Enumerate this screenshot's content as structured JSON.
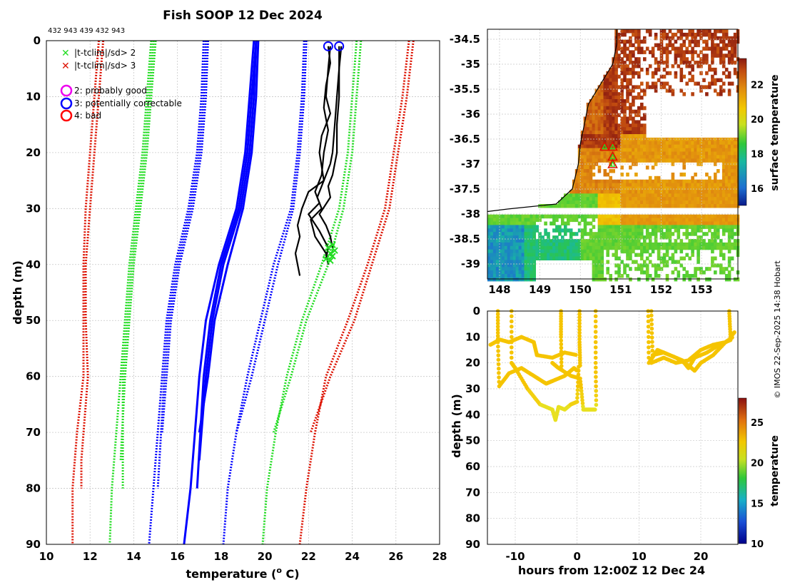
{
  "figure": {
    "title": "Fish SOOP 12 Dec 2024",
    "top_ids": "432 943 439 432 943",
    "credit": "© IMOS 22-Sep-2025 14:38 Hobart"
  },
  "colors": {
    "blue": "#0000ff",
    "green": "#22dd22",
    "red": "#dd1100",
    "black": "#000000",
    "grid": "#c8c8c8",
    "magenta": "#ee00ee"
  },
  "chart_data": [
    {
      "type": "line",
      "name": "profile",
      "xlabel": "temperature (",
      "xlabel_sup": "o",
      "xlabel_suffix": " C)",
      "ylabel": "depth (m)",
      "xlim": [
        10,
        28
      ],
      "ylim": [
        90,
        0
      ],
      "xticks": [
        "10",
        "12",
        "14",
        "16",
        "18",
        "20",
        "22",
        "24",
        "26",
        "28"
      ],
      "yticks": [
        "0",
        "10",
        "20",
        "30",
        "40",
        "50",
        "60",
        "70",
        "80",
        "90"
      ],
      "legend": [
        {
          "symbol": "x",
          "color": "#22dd22",
          "label": "|t-tclim|/sd> 2"
        },
        {
          "symbol": "x",
          "color": "#dd1100",
          "label": "|t-tclim|/sd> 3"
        },
        {
          "symbol": "o",
          "color": "#ee00ee",
          "label": "2: probably good"
        },
        {
          "symbol": "o",
          "color": "#0000ff",
          "label": "3: potentially correctable"
        },
        {
          "symbol": "o",
          "color": "#ff0000",
          "label": "4: bad"
        }
      ],
      "climatology": [
        {
          "name": "mean-1",
          "depth": [
            0,
            10,
            20,
            30,
            40,
            50,
            60,
            70
          ],
          "temp": [
            19.7,
            19.6,
            19.4,
            19.0,
            18.3,
            17.7,
            17.4,
            17.0
          ]
        },
        {
          "name": "mean-2",
          "depth": [
            0,
            10,
            20,
            30,
            40,
            50,
            60,
            75
          ],
          "temp": [
            19.6,
            19.5,
            19.3,
            18.9,
            18.1,
            17.6,
            17.3,
            17.0
          ]
        },
        {
          "name": "mean-3",
          "depth": [
            0,
            10,
            20,
            30,
            40,
            50,
            60,
            80
          ],
          "temp": [
            19.6,
            19.4,
            19.2,
            18.8,
            18.0,
            17.5,
            17.2,
            16.9
          ]
        },
        {
          "name": "mean-4",
          "depth": [
            0,
            10,
            20,
            30,
            40,
            50,
            60,
            70,
            80,
            90
          ],
          "temp": [
            19.5,
            19.3,
            19.1,
            18.7,
            17.9,
            17.3,
            17.0,
            16.8,
            16.6,
            16.3
          ]
        },
        {
          "name": "sd1-lower-1",
          "depth": [
            0,
            10,
            20,
            30,
            40,
            50,
            60,
            70
          ],
          "temp": [
            17.4,
            17.3,
            17.1,
            16.7,
            16.1,
            15.7,
            15.5,
            15.3
          ]
        },
        {
          "name": "sd1-lower-2",
          "depth": [
            0,
            10,
            20,
            30,
            40,
            50,
            60,
            80
          ],
          "temp": [
            17.3,
            17.2,
            17.0,
            16.6,
            16.0,
            15.6,
            15.4,
            15.1
          ]
        },
        {
          "name": "sd1-lower-3",
          "depth": [
            0,
            10,
            20,
            30,
            40,
            50,
            60,
            70,
            80,
            90
          ],
          "temp": [
            17.2,
            17.1,
            16.9,
            16.5,
            15.9,
            15.5,
            15.3,
            15.1,
            14.9,
            14.7
          ]
        },
        {
          "name": "sd1-upper-1",
          "depth": [
            0,
            10,
            20,
            30,
            40,
            50,
            60,
            70
          ],
          "temp": [
            21.9,
            21.8,
            21.6,
            21.3,
            20.6,
            20.0,
            19.4,
            18.7
          ]
        },
        {
          "name": "sd1-upper-2",
          "depth": [
            0,
            10,
            20,
            30,
            40,
            50,
            60,
            70,
            80,
            90
          ],
          "temp": [
            21.8,
            21.7,
            21.5,
            21.2,
            20.4,
            19.8,
            19.2,
            18.7,
            18.3,
            18.1
          ]
        },
        {
          "name": "sd2-lower-1",
          "depth": [
            0,
            10,
            20,
            30,
            40,
            50,
            60,
            75
          ],
          "temp": [
            15.0,
            14.8,
            14.6,
            14.3,
            14.0,
            13.8,
            13.6,
            13.4
          ]
        },
        {
          "name": "sd2-lower-2",
          "depth": [
            0,
            10,
            20,
            30,
            40,
            50,
            60,
            80
          ],
          "temp": [
            14.9,
            14.7,
            14.5,
            14.2,
            13.9,
            13.7,
            13.5,
            13.5
          ]
        },
        {
          "name": "sd2-lower-3",
          "depth": [
            0,
            10,
            20,
            30,
            40,
            50,
            60,
            70,
            80,
            90
          ],
          "temp": [
            14.8,
            14.6,
            14.4,
            14.1,
            13.8,
            13.6,
            13.4,
            13.2,
            13.0,
            12.9
          ]
        },
        {
          "name": "sd2-upper-1",
          "depth": [
            0,
            10,
            20,
            30,
            40,
            50,
            60,
            70
          ],
          "temp": [
            24.4,
            24.2,
            24.0,
            23.6,
            22.9,
            21.9,
            21.2,
            20.4
          ]
        },
        {
          "name": "sd2-upper-2",
          "depth": [
            0,
            10,
            20,
            30,
            40,
            50,
            60,
            70,
            80,
            90
          ],
          "temp": [
            24.2,
            24.0,
            23.8,
            23.4,
            22.6,
            21.7,
            21.0,
            20.5,
            20.1,
            19.9
          ]
        },
        {
          "name": "sd3-lower-1",
          "depth": [
            0,
            10,
            20,
            30,
            40,
            50,
            60,
            75,
            80
          ],
          "temp": [
            12.6,
            12.4,
            12.2,
            12.0,
            11.8,
            11.8,
            11.9,
            11.6,
            11.6
          ]
        },
        {
          "name": "sd3-lower-2",
          "depth": [
            0,
            10,
            20,
            30,
            40,
            50,
            60,
            70,
            80,
            90
          ],
          "temp": [
            12.4,
            12.2,
            12.0,
            11.8,
            11.7,
            11.7,
            11.7,
            11.4,
            11.2,
            11.2
          ]
        },
        {
          "name": "sd3-upper-1",
          "depth": [
            0,
            10,
            20,
            30,
            40,
            50,
            60,
            70
          ],
          "temp": [
            26.8,
            26.5,
            26.1,
            25.7,
            24.9,
            24.1,
            23.0,
            22.1
          ]
        },
        {
          "name": "sd3-upper-2",
          "depth": [
            0,
            10,
            20,
            30,
            40,
            50,
            60,
            70,
            80,
            90
          ],
          "temp": [
            26.6,
            26.3,
            25.9,
            25.5,
            24.7,
            23.8,
            22.8,
            22.3,
            21.9,
            21.6
          ]
        }
      ],
      "observed": [
        {
          "name": "obs-1",
          "depth": [
            1,
            5,
            10,
            15,
            20,
            22,
            25,
            28,
            30,
            32,
            35,
            38,
            40
          ],
          "temp": [
            23.5,
            23.4,
            23.3,
            23.2,
            23.1,
            23.0,
            22.7,
            22.4,
            22.6,
            22.1,
            22.3,
            22.8,
            22.9
          ]
        },
        {
          "name": "obs-2",
          "depth": [
            1,
            5,
            10,
            13,
            17,
            20,
            25,
            27,
            30,
            33,
            35,
            38,
            40,
            42
          ],
          "temp": [
            23.0,
            22.9,
            22.8,
            23.0,
            22.6,
            22.5,
            22.7,
            22.0,
            21.7,
            21.5,
            21.6,
            21.4,
            21.5,
            21.6
          ]
        },
        {
          "name": "obs-3",
          "depth": [
            1,
            4,
            8,
            12,
            16,
            20,
            24,
            27,
            29,
            31,
            34,
            37,
            39
          ],
          "temp": [
            22.9,
            23.0,
            22.8,
            22.7,
            22.9,
            22.7,
            22.6,
            22.3,
            22.5,
            22.0,
            22.5,
            22.9,
            22.8
          ]
        },
        {
          "name": "obs-4",
          "depth": [
            1,
            5,
            10,
            15,
            20,
            24,
            26,
            28,
            31,
            33,
            35,
            37
          ],
          "temp": [
            23.4,
            23.4,
            23.4,
            23.3,
            23.3,
            23.1,
            22.9,
            23.0,
            22.5,
            22.8,
            23.0,
            23.1
          ]
        }
      ],
      "top_markers": [
        {
          "temp": 22.9,
          "depth": 1
        },
        {
          "temp": 23.4,
          "depth": 1
        }
      ],
      "flag_markers": [
        {
          "temp": 22.9,
          "depth": 37
        },
        {
          "temp": 23.0,
          "depth": 38
        },
        {
          "temp": 23.1,
          "depth": 38.5
        },
        {
          "temp": 23.2,
          "depth": 37.5
        },
        {
          "temp": 22.8,
          "depth": 39
        },
        {
          "temp": 23.0,
          "depth": 39.3
        },
        {
          "temp": 23.1,
          "depth": 36.5
        }
      ]
    },
    {
      "type": "heatmap",
      "name": "sst-map",
      "xlim": [
        147.7,
        153.9
      ],
      "ylim": [
        -39.3,
        -34.3
      ],
      "xticks": [
        "148",
        "149",
        "150",
        "151",
        "152",
        "153"
      ],
      "yticks": [
        "-34.5",
        "-35",
        "-35.5",
        "-36",
        "-36.5",
        "-37",
        "-37.5",
        "-38",
        "-38.5",
        "-39"
      ],
      "colorbar_label": "surface temperature",
      "colorbar_range": [
        15,
        23.5
      ],
      "colorbar_ticks": [
        "16",
        "18",
        "20",
        "22"
      ],
      "coast": [
        [
          150.9,
          -34.3
        ],
        [
          150.9,
          -34.6
        ],
        [
          150.8,
          -35.0
        ],
        [
          150.5,
          -35.4
        ],
        [
          150.2,
          -35.8
        ],
        [
          150.1,
          -36.2
        ],
        [
          150.0,
          -36.6
        ],
        [
          149.95,
          -37.0
        ],
        [
          149.8,
          -37.5
        ],
        [
          149.4,
          -37.8
        ],
        [
          148.8,
          -37.85
        ],
        [
          148.2,
          -37.9
        ],
        [
          147.7,
          -37.95
        ]
      ],
      "stations": [
        {
          "lon": 150.6,
          "lat": -36.65
        },
        {
          "lon": 150.8,
          "lat": -36.65
        },
        {
          "lon": 150.8,
          "lat": -36.85
        },
        {
          "lon": 150.8,
          "lat": -37.0
        }
      ]
    },
    {
      "type": "scatter",
      "name": "time-depth",
      "xlabel": "hours from 12:00Z 12 Dec 24",
      "ylabel": "depth (m)",
      "xlim": [
        -14.5,
        26
      ],
      "ylim": [
        90,
        0
      ],
      "xticks": [
        "-10",
        "0",
        "10",
        "20"
      ],
      "yticks": [
        "0",
        "10",
        "20",
        "30",
        "40",
        "50",
        "60",
        "70",
        "80",
        "90"
      ],
      "colorbar_label": "temperature",
      "colorbar_range": [
        10,
        28
      ],
      "colorbar_ticks": [
        "10",
        "15",
        "20",
        "25"
      ],
      "segments": [
        {
          "x": [
            -14,
            -12.5,
            -11,
            -9,
            -7,
            -6.5,
            -4,
            -2,
            0
          ],
          "y": [
            13,
            11,
            12,
            10,
            12,
            17,
            18,
            16,
            17
          ]
        },
        {
          "x": [
            -12.8,
            -12.8,
            -12.6,
            -11,
            -9,
            -7,
            -5,
            -4,
            -2,
            -0.5,
            0
          ],
          "y": [
            0,
            12,
            29,
            24,
            22,
            25,
            28,
            27,
            25,
            22,
            23
          ]
        },
        {
          "x": [
            -10.6,
            -10.6,
            -10,
            -8,
            -6,
            -4,
            -3.5,
            -3,
            -2,
            -1,
            0,
            0.3
          ],
          "y": [
            0,
            20,
            22,
            30,
            36,
            38,
            42,
            37,
            38,
            36,
            35,
            20
          ]
        },
        {
          "x": [
            -4,
            -3,
            -1,
            0.5,
            1,
            2,
            3
          ],
          "y": [
            20,
            22,
            25,
            26,
            38,
            38,
            38
          ]
        },
        {
          "x": [
            -2.6,
            -2.6,
            -2.5
          ],
          "y": [
            0,
            10,
            24
          ]
        },
        {
          "x": [
            0.4,
            0.4,
            0.5
          ],
          "y": [
            0,
            12,
            22
          ]
        },
        {
          "x": [
            3,
            3,
            3.1
          ],
          "y": [
            0,
            20,
            38
          ]
        },
        {
          "x": [
            11.5,
            11.6,
            13,
            15,
            17,
            18,
            19,
            21,
            23,
            25
          ],
          "y": [
            0,
            20,
            15,
            17,
            19,
            22,
            18,
            16,
            13,
            11
          ]
        },
        {
          "x": [
            12,
            12.2,
            14,
            16,
            18,
            19,
            20,
            22,
            24,
            25.2
          ],
          "y": [
            0,
            17,
            16,
            18,
            21,
            23,
            20,
            17,
            12,
            10
          ]
        },
        {
          "x": [
            12,
            14,
            16,
            18,
            20,
            22,
            24
          ],
          "y": [
            20,
            18,
            20,
            19,
            15,
            13,
            12
          ]
        },
        {
          "x": [
            24.6,
            24.8,
            25.5
          ],
          "y": [
            0,
            10,
            8
          ]
        }
      ]
    }
  ]
}
